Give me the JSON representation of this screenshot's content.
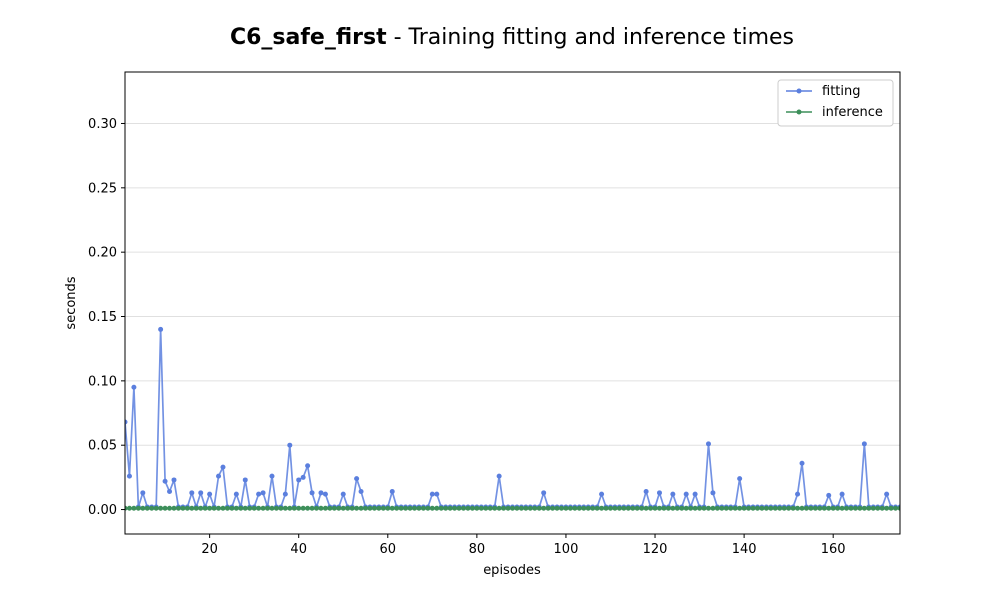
{
  "chart_data": {
    "type": "line",
    "title_bold": "C6_safe_first",
    "title_rest": " - Training fitting and inference times",
    "xlabel": "episodes",
    "ylabel": "seconds",
    "xlim": [
      1,
      175
    ],
    "ylim": [
      -0.019,
      0.34
    ],
    "xticks": [
      20,
      40,
      60,
      80,
      100,
      120,
      140,
      160
    ],
    "yticks": [
      0.0,
      0.05,
      0.1,
      0.15,
      0.2,
      0.25,
      0.3
    ],
    "ytick_labels": [
      "0.00",
      "0.05",
      "0.10",
      "0.15",
      "0.20",
      "0.25",
      "0.30"
    ],
    "grid": "horizontal",
    "legend_position": "top-right",
    "fitting_spikes": {
      "1": 0.068,
      "2": 0.026,
      "3": 0.095,
      "5": 0.013,
      "9": 0.14,
      "10": 0.022,
      "11": 0.014,
      "12": 0.023,
      "16": 0.013,
      "18": 0.013,
      "20": 0.012,
      "22": 0.026,
      "23": 0.033,
      "26": 0.012,
      "28": 0.023,
      "31": 0.012,
      "32": 0.013,
      "34": 0.026,
      "37": 0.012,
      "38": 0.05,
      "40": 0.023,
      "41": 0.025,
      "42": 0.034,
      "43": 0.013,
      "45": 0.013,
      "46": 0.012,
      "50": 0.012,
      "53": 0.024,
      "54": 0.014,
      "61": 0.014,
      "70": 0.012,
      "71": 0.012,
      "85": 0.026,
      "95": 0.013,
      "108": 0.012,
      "118": 0.014,
      "121": 0.013,
      "124": 0.012,
      "127": 0.012,
      "129": 0.012,
      "132": 0.051,
      "133": 0.013,
      "139": 0.024,
      "152": 0.012,
      "153": 0.036,
      "159": 0.011,
      "162": 0.012,
      "167": 0.051,
      "172": 0.012
    },
    "fitting_baseline": 0.002,
    "inference_value": 0.001,
    "series": [
      {
        "name": "fitting",
        "color": "#5b7fde"
      },
      {
        "name": "inference",
        "color": "#3d8f5a"
      }
    ]
  }
}
